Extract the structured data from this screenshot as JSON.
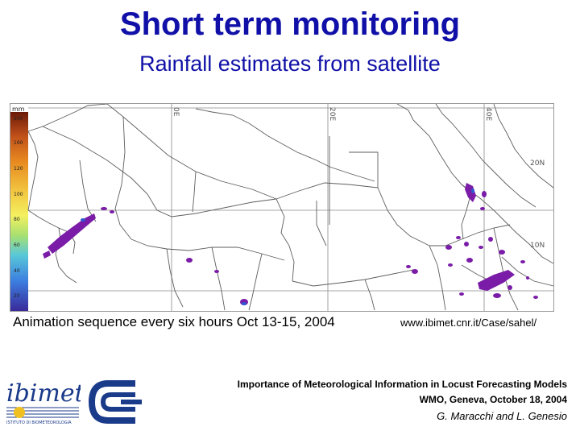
{
  "slide": {
    "title": "Short term monitoring",
    "subtitle": "Rainfall estimates from satellite"
  },
  "map": {
    "legend_unit": "mm",
    "legend_ticks": [
      "200",
      "160",
      "120",
      "100",
      "80",
      "60",
      "40",
      "20"
    ],
    "grid_labels": [
      "0E",
      "20E",
      "40E",
      "20N",
      "10N"
    ]
  },
  "caption": "Animation sequence every six hours Oct 13-15, 2004",
  "url": "www.ibimet.cnr.it/Case/sahel/",
  "footer": {
    "line1": "Importance of Meteorological Information in Locust Forecasting Models",
    "line2": "WMO, Geneva, October 18, 2004",
    "line3": "G. Maracchi and L. Genesio"
  },
  "logos": {
    "ibimet": "ibimet",
    "ibimet_small": "ISTITUTO DI BIOMETEOROLOGIA"
  },
  "colors": {
    "title": "#1010a8",
    "rain": "#7a1ca8",
    "border": "#6a6a6a"
  }
}
